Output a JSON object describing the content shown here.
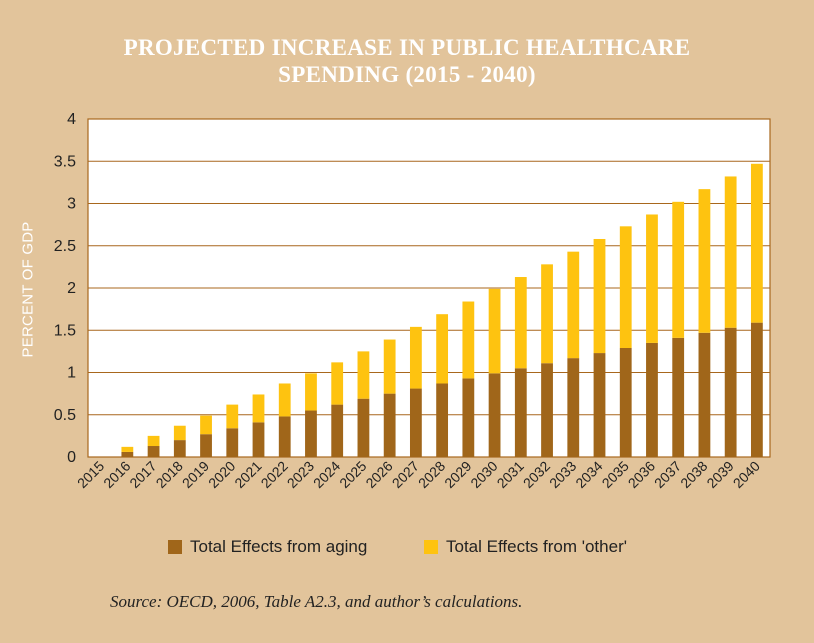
{
  "chart_data": {
    "type": "bar",
    "stacked": true,
    "title": "PROJECTED INCREASE IN PUBLIC HEALTHCARE SPENDING (2015 - 2040)",
    "title_lines": [
      "PROJECTED INCREASE IN PUBLIC HEALTHCARE",
      "SPENDING (2015 - 2040)"
    ],
    "ylabel": "PERCENT OF GDP",
    "xlabel": "",
    "ylim": [
      0,
      4
    ],
    "yticks": [
      "0",
      "0.5",
      "1",
      "1.5",
      "2",
      "2.5",
      "3",
      "3.5",
      "4"
    ],
    "grid": true,
    "legend_position": "bottom",
    "categories": [
      "2015",
      "2016",
      "2017",
      "2018",
      "2019",
      "2020",
      "2021",
      "2022",
      "2023",
      "2024",
      "2025",
      "2026",
      "2027",
      "2028",
      "2029",
      "2030",
      "2031",
      "2032",
      "2033",
      "2034",
      "2035",
      "2036",
      "2037",
      "2038",
      "2039",
      "2040"
    ],
    "series": [
      {
        "name": "Total Effects from aging",
        "color": "#a0661a",
        "values": [
          0,
          0.06,
          0.13,
          0.2,
          0.27,
          0.34,
          0.41,
          0.48,
          0.55,
          0.62,
          0.69,
          0.75,
          0.81,
          0.87,
          0.93,
          0.99,
          1.05,
          1.11,
          1.17,
          1.23,
          1.29,
          1.35,
          1.41,
          1.47,
          1.53,
          1.59
        ]
      },
      {
        "name": "Total Effects from 'other'",
        "color": "#fec310",
        "values": [
          0,
          0.06,
          0.12,
          0.17,
          0.22,
          0.28,
          0.33,
          0.39,
          0.44,
          0.5,
          0.56,
          0.64,
          0.73,
          0.82,
          0.91,
          1.0,
          1.08,
          1.17,
          1.26,
          1.35,
          1.44,
          1.52,
          1.61,
          1.7,
          1.79,
          1.88
        ]
      }
    ]
  },
  "source_note": "Source: OECD, 2006, Table A2.3, and author’s calculations."
}
